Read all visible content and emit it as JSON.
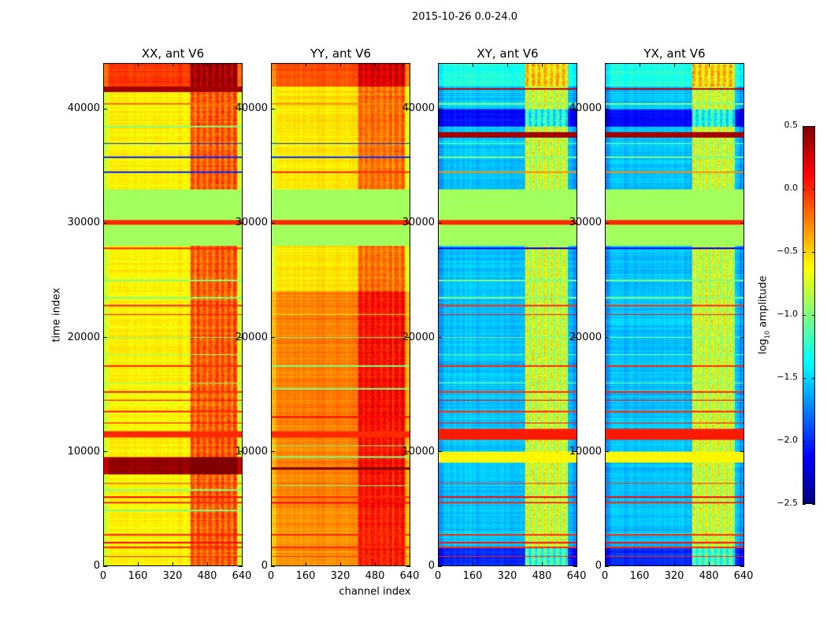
{
  "chart_data": {
    "type": "heatmap",
    "suptitle": "2015-10-26 0.0-24.0",
    "ylabel": "time index",
    "xlabel": "channel index",
    "xlim": [
      0,
      640
    ],
    "ylim": [
      0,
      44000
    ],
    "xticks": [
      "0",
      "160",
      "320",
      "480",
      "640"
    ],
    "yticks": [
      "0",
      "10000",
      "20000",
      "30000",
      "40000"
    ],
    "colorbar": {
      "label_main": "log",
      "label_sub": "10",
      "label_rest": " amplitude",
      "range": [
        -2.5,
        0.5
      ],
      "ticks": [
        "0.5",
        "0.0",
        "−0.5",
        "−1.0",
        "−1.5",
        "−2.0",
        "−2.5"
      ],
      "colormap": "jet"
    },
    "panels": [
      {
        "title": "XX, ant V6",
        "base": -0.6,
        "hot_channels": [
          400,
          620
        ],
        "hot_delta": 0.45,
        "hot_tmin": 0,
        "bands": [
          [
            42000,
            44000,
            -0.05
          ],
          [
            28000,
            33000,
            -0.9
          ],
          [
            29900,
            30300,
            0.0
          ],
          [
            8000,
            9500,
            0.45
          ],
          [
            11200,
            11800,
            0.0
          ],
          [
            41500,
            42000,
            0.4
          ]
        ],
        "lines": [
          [
            800,
            0.0
          ],
          [
            1600,
            0.0
          ],
          [
            2000,
            0.1
          ],
          [
            2700,
            0.0
          ],
          [
            4800,
            -1.0
          ],
          [
            5500,
            0.0
          ],
          [
            6000,
            0.1
          ],
          [
            6600,
            -1.0
          ],
          [
            7200,
            0.0
          ],
          [
            12500,
            0.1
          ],
          [
            13500,
            0.0
          ],
          [
            14500,
            0.1
          ],
          [
            15200,
            0.0
          ],
          [
            16000,
            -1.0
          ],
          [
            17500,
            0.0
          ],
          [
            18500,
            -1.0
          ],
          [
            20000,
            -1.0
          ],
          [
            22000,
            0.1
          ],
          [
            22800,
            0.0
          ],
          [
            23500,
            -1.0
          ],
          [
            25000,
            -1.0
          ],
          [
            27800,
            0.0
          ],
          [
            34500,
            -2.0
          ],
          [
            35800,
            -2.0
          ],
          [
            37000,
            -2.0
          ],
          [
            38500,
            -1.0
          ],
          [
            40500,
            -0.2
          ]
        ]
      },
      {
        "title": "YY, ant V6",
        "base": -0.25,
        "hot_channels": [
          400,
          620
        ],
        "hot_delta": 0.35,
        "hot_tmin": 0,
        "bands": [
          [
            42000,
            44000,
            -0.1
          ],
          [
            33000,
            42000,
            -0.55
          ],
          [
            24000,
            28000,
            -0.55
          ],
          [
            0,
            5000,
            -0.3
          ],
          [
            28000,
            33000,
            -0.9
          ],
          [
            29900,
            30300,
            0.0
          ],
          [
            11200,
            11800,
            0.0
          ],
          [
            8400,
            8600,
            0.5
          ]
        ],
        "lines": [
          [
            800,
            0.0
          ],
          [
            1600,
            0.0
          ],
          [
            2700,
            0.0
          ],
          [
            5500,
            0.1
          ],
          [
            6000,
            0.0
          ],
          [
            7000,
            -1.0
          ],
          [
            9500,
            -1.0
          ],
          [
            10500,
            -1.0
          ],
          [
            13000,
            0.1
          ],
          [
            15500,
            -1.0
          ],
          [
            17500,
            -1.0
          ],
          [
            20000,
            -1.0
          ],
          [
            22000,
            -0.6
          ],
          [
            34500,
            0.0
          ],
          [
            35800,
            -2.0
          ],
          [
            37000,
            -2.0
          ],
          [
            40500,
            -0.3
          ]
        ]
      },
      {
        "title": "XY, ant V6",
        "base": -1.55,
        "hot_channels": [
          400,
          600
        ],
        "hot_delta": 0.8,
        "hot_tmin": 0,
        "bands": [
          [
            42000,
            44000,
            -1.3
          ],
          [
            28000,
            33000,
            -0.9
          ],
          [
            29900,
            30300,
            0.0
          ],
          [
            37500,
            38000,
            0.4
          ],
          [
            11000,
            12000,
            0.05
          ],
          [
            9000,
            10000,
            -0.6
          ],
          [
            0,
            1500,
            -2.0
          ],
          [
            38500,
            40000,
            -2.1
          ]
        ],
        "lines": [
          [
            800,
            0.0
          ],
          [
            1600,
            0.0
          ],
          [
            2000,
            0.1
          ],
          [
            2700,
            0.0
          ],
          [
            5500,
            0.0
          ],
          [
            6000,
            0.1
          ],
          [
            7200,
            0.0
          ],
          [
            12500,
            0.1
          ],
          [
            13500,
            0.0
          ],
          [
            14500,
            0.1
          ],
          [
            15200,
            0.0
          ],
          [
            16000,
            -1.0
          ],
          [
            17500,
            0.0
          ],
          [
            18500,
            -1.0
          ],
          [
            20000,
            -1.0
          ],
          [
            22000,
            0.1
          ],
          [
            22800,
            0.0
          ],
          [
            23500,
            -1.0
          ],
          [
            25000,
            -1.0
          ],
          [
            27800,
            -2.2
          ],
          [
            34500,
            -0.3
          ],
          [
            35800,
            -1.0
          ],
          [
            37000,
            -1.0
          ],
          [
            40500,
            -1.0
          ],
          [
            41800,
            0.3
          ]
        ]
      },
      {
        "title": "YX, ant V6",
        "base": -1.55,
        "hot_channels": [
          400,
          600
        ],
        "hot_delta": 0.8,
        "hot_tmin": 0,
        "bands": [
          [
            42000,
            44000,
            -1.3
          ],
          [
            28000,
            33000,
            -0.9
          ],
          [
            29900,
            30300,
            0.0
          ],
          [
            37500,
            38000,
            0.4
          ],
          [
            11000,
            12000,
            0.05
          ],
          [
            9000,
            10000,
            -0.6
          ],
          [
            0,
            1500,
            -2.0
          ],
          [
            38500,
            40000,
            -2.1
          ]
        ],
        "lines": [
          [
            800,
            0.0
          ],
          [
            1600,
            0.0
          ],
          [
            2000,
            0.1
          ],
          [
            2700,
            0.0
          ],
          [
            5500,
            0.0
          ],
          [
            6000,
            0.1
          ],
          [
            7200,
            0.0
          ],
          [
            12500,
            0.1
          ],
          [
            13500,
            0.0
          ],
          [
            14500,
            0.1
          ],
          [
            15200,
            0.0
          ],
          [
            16000,
            -1.0
          ],
          [
            17500,
            0.0
          ],
          [
            18500,
            -1.0
          ],
          [
            20000,
            -1.0
          ],
          [
            22000,
            0.1
          ],
          [
            22800,
            0.0
          ],
          [
            23500,
            -1.0
          ],
          [
            25000,
            -1.0
          ],
          [
            27800,
            -2.2
          ],
          [
            34500,
            -0.3
          ],
          [
            35800,
            -1.0
          ],
          [
            37000,
            -1.0
          ],
          [
            40500,
            -1.0
          ],
          [
            41800,
            0.3
          ]
        ]
      }
    ]
  }
}
